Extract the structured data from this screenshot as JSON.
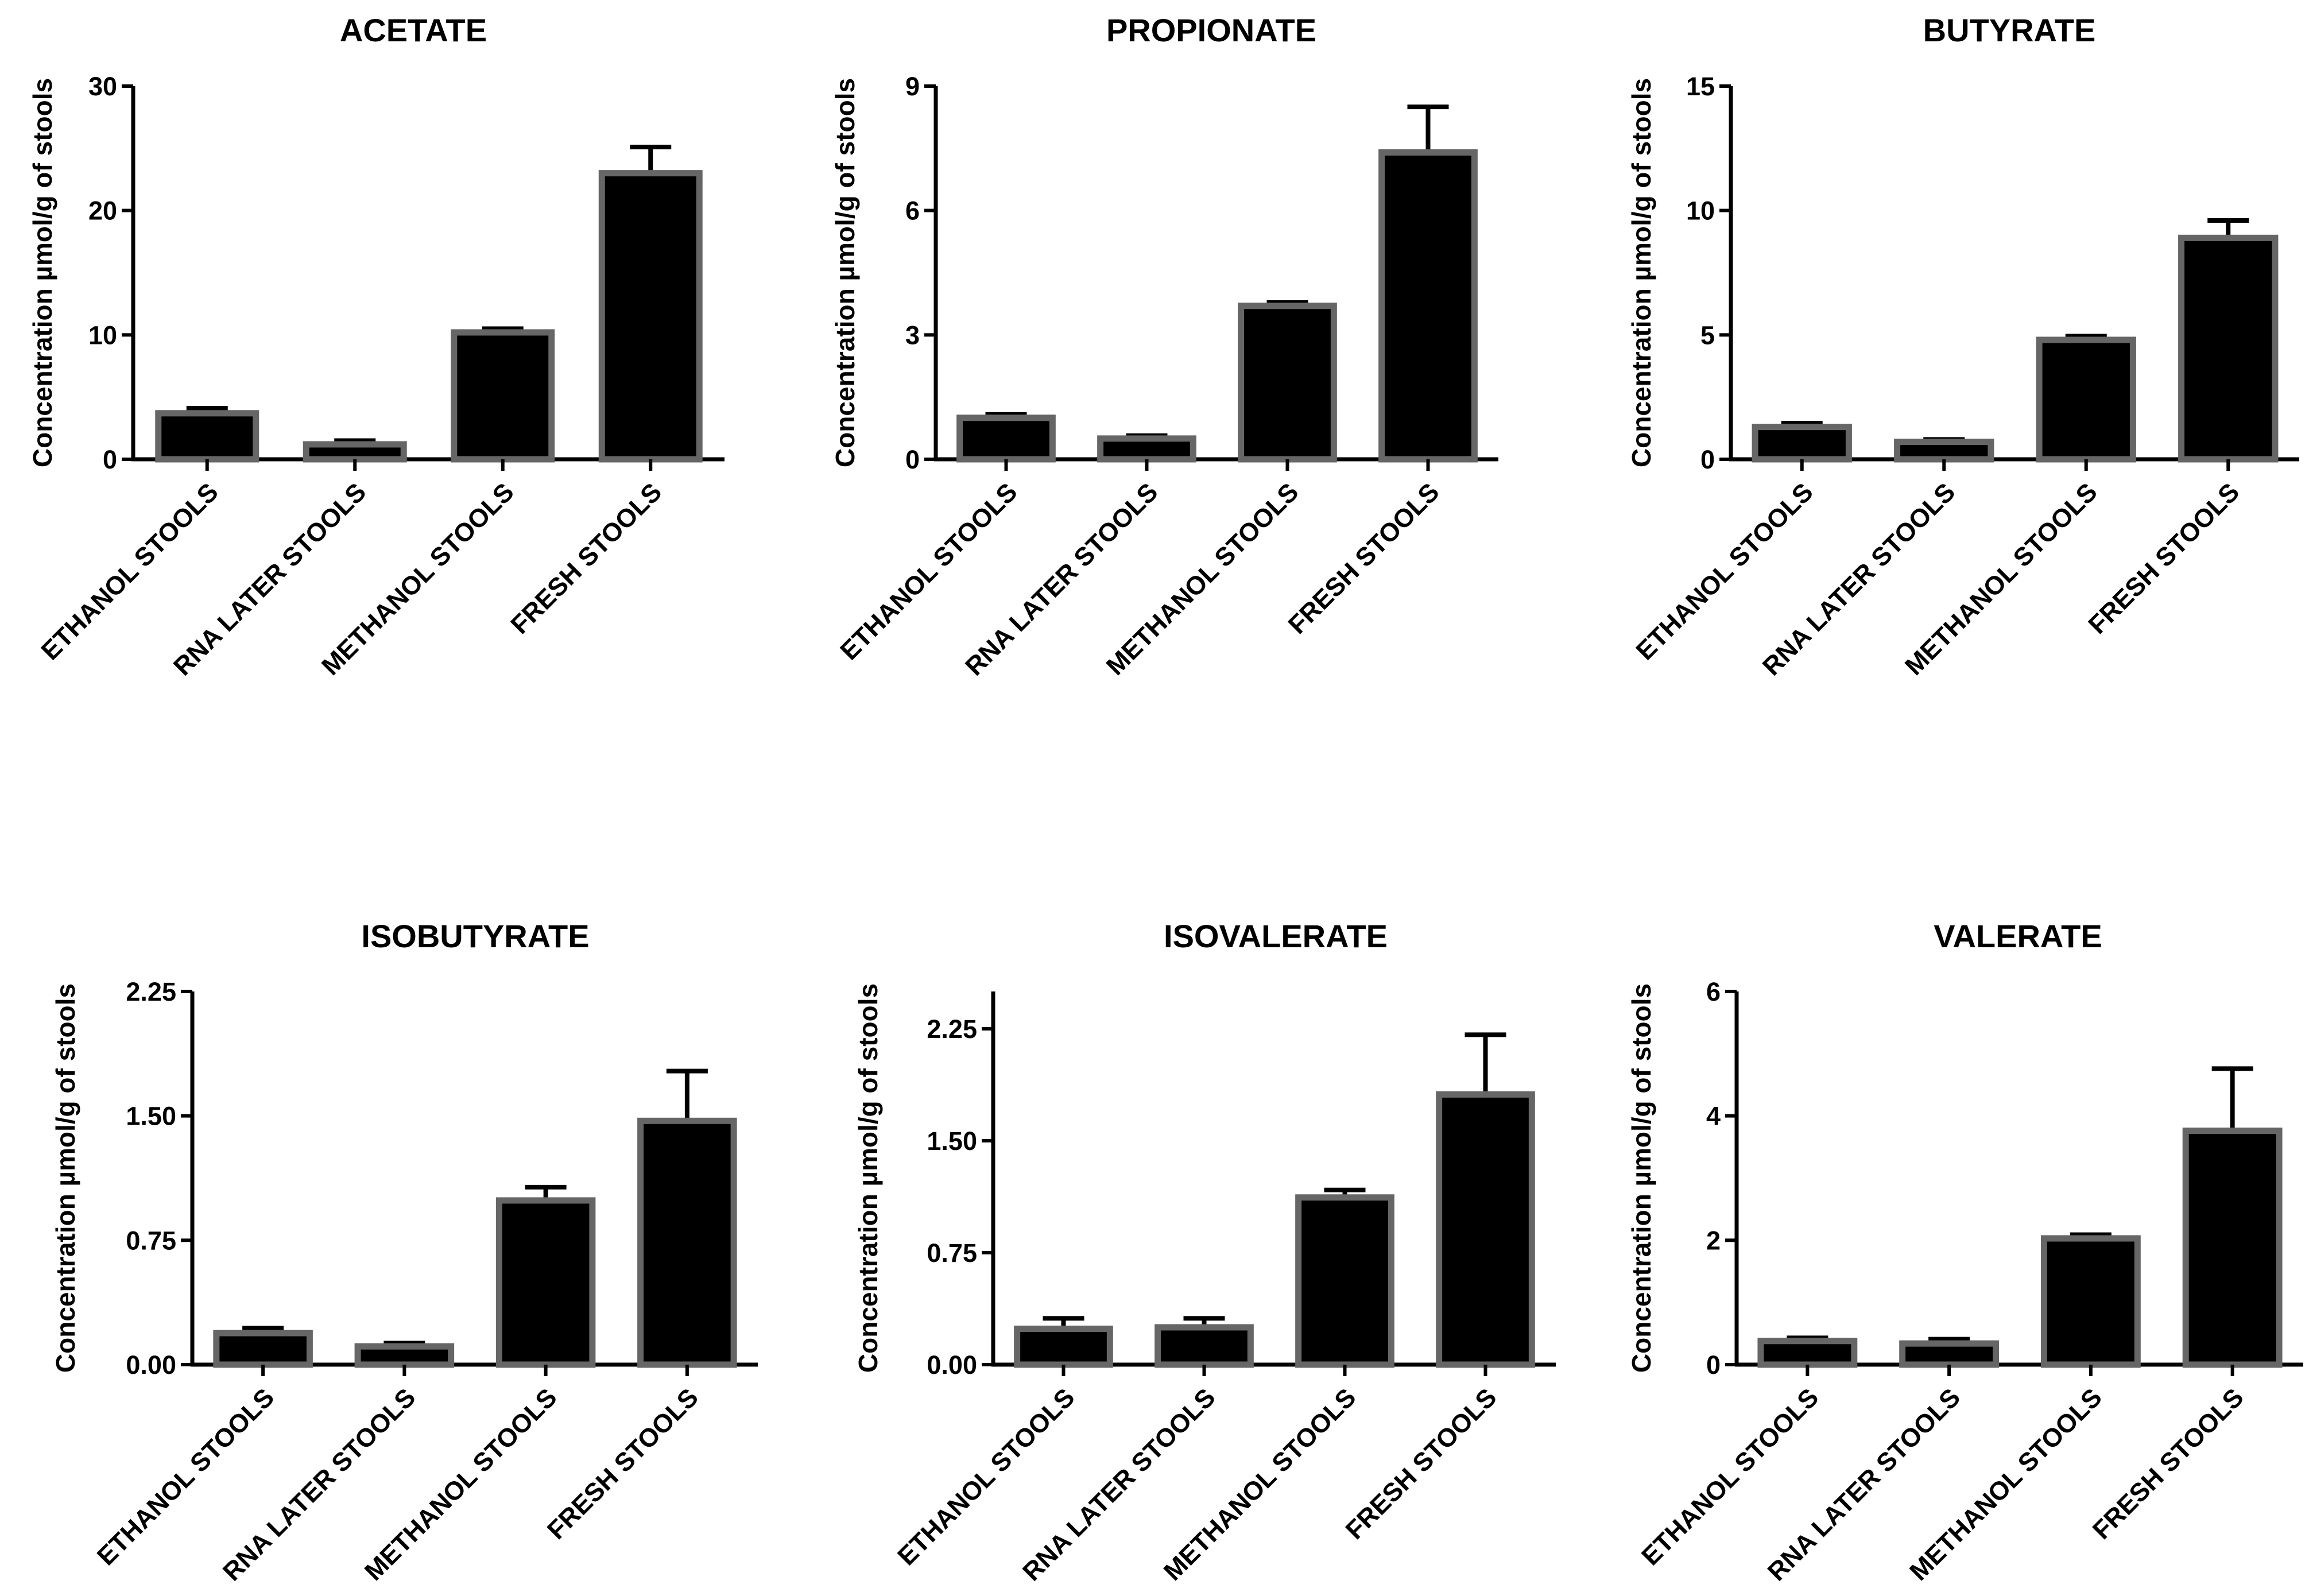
{
  "figure": {
    "categories": [
      "ETHANOL STOOLS",
      "RNA LATER STOOLS",
      "METHANOL STOOLS",
      "FRESH STOOLS"
    ],
    "ylabel": "Concentration µmol/g of stools",
    "colors": {
      "bar_fill": "#000000",
      "bar_edge": "#666666"
    }
  },
  "chart_data": [
    {
      "type": "bar",
      "title": "ACETATE",
      "ylabel": "Concentration µmol/g of stools",
      "categories": [
        "ETHANOL STOOLS",
        "RNA LATER STOOLS",
        "METHANOL STOOLS",
        "FRESH STOOLS"
      ],
      "values": [
        3.7,
        1.2,
        10.2,
        23.0
      ],
      "errors": [
        0.4,
        0.3,
        0.3,
        2.1
      ],
      "ylim": [
        0,
        30
      ],
      "yticks": [
        "0",
        "10",
        "20",
        "30"
      ],
      "ytick_values": [
        0,
        10,
        20,
        30
      ]
    },
    {
      "type": "bar",
      "title": "PROPIONATE",
      "ylabel": "Concentration µmol/g of stools",
      "categories": [
        "ETHANOL STOOLS",
        "RNA LATER STOOLS",
        "METHANOL STOOLS",
        "FRESH STOOLS"
      ],
      "values": [
        1.0,
        0.5,
        3.7,
        7.4
      ],
      "errors": [
        0.08,
        0.07,
        0.08,
        1.1
      ],
      "ylim": [
        0,
        9
      ],
      "yticks": [
        "0",
        "3",
        "6",
        "9"
      ],
      "ytick_values": [
        0,
        3,
        6,
        9
      ]
    },
    {
      "type": "bar",
      "title": "BUTYRATE",
      "ylabel": "Concentration µmol/g of stools",
      "categories": [
        "ETHANOL STOOLS",
        "RNA LATER STOOLS",
        "METHANOL STOOLS",
        "FRESH STOOLS"
      ],
      "values": [
        1.3,
        0.7,
        4.8,
        8.9
      ],
      "errors": [
        0.15,
        0.1,
        0.15,
        0.7
      ],
      "ylim": [
        0,
        15
      ],
      "yticks": [
        "0",
        "5",
        "10",
        "15"
      ],
      "ytick_values": [
        0,
        5,
        10,
        15
      ]
    },
    {
      "type": "bar",
      "title": "ISOBUTYRATE",
      "ylabel": "Concentration µmol/g of stools",
      "categories": [
        "ETHANOL STOOLS",
        "RNA LATER STOOLS",
        "METHANOL STOOLS",
        "FRESH STOOLS"
      ],
      "values": [
        0.19,
        0.11,
        0.99,
        1.47
      ],
      "errors": [
        0.03,
        0.02,
        0.08,
        0.3
      ],
      "ylim": [
        0,
        2.25
      ],
      "yticks": [
        "0.00",
        "0.75",
        "1.50",
        "2.25"
      ],
      "ytick_values": [
        0,
        0.75,
        1.5,
        2.25
      ]
    },
    {
      "type": "bar",
      "title": "ISOVALERATE",
      "ylabel": "Concentration µmol/g of stools",
      "categories": [
        "ETHANOL STOOLS",
        "RNA LATER STOOLS",
        "METHANOL STOOLS",
        "FRESH STOOLS"
      ],
      "values": [
        0.24,
        0.25,
        1.12,
        1.81
      ],
      "errors": [
        0.07,
        0.06,
        0.05,
        0.4
      ],
      "ylim": [
        0,
        2.5
      ],
      "yticks": [
        "0.00",
        "0.75",
        "1.50",
        "2.25"
      ],
      "ytick_values": [
        0,
        0.75,
        1.5,
        2.25
      ]
    },
    {
      "type": "bar",
      "title": "VALERATE",
      "ylabel": "Concentration µmol/g of stools",
      "categories": [
        "ETHANOL STOOLS",
        "RNA LATER STOOLS",
        "METHANOL STOOLS",
        "FRESH STOOLS"
      ],
      "values": [
        0.38,
        0.34,
        2.03,
        3.76
      ],
      "errors": [
        0.05,
        0.07,
        0.06,
        1.0
      ],
      "ylim": [
        0,
        6
      ],
      "yticks": [
        "0",
        "2",
        "4",
        "6"
      ],
      "ytick_values": [
        0,
        2,
        4,
        6
      ]
    }
  ]
}
